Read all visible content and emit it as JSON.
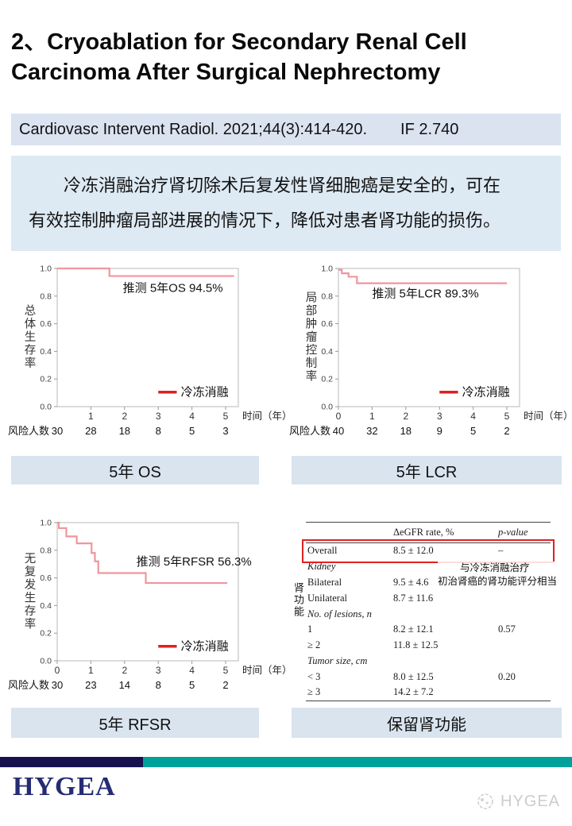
{
  "slide": {
    "title_line1": "2、Cryoablation for Secondary Renal Cell",
    "title_line2": "Carcinoma After Surgical Nephrectomy",
    "citation": "Cardiovasc Intervent Radiol. 2021;44(3):414-420.",
    "impact_factor": "IF 2.740",
    "summary_lines": [
      "冷冻消融治疗肾切除术后复发性肾细胞癌是安全的，可在",
      "有效控制肿瘤局部进展的情况下，降低对患者肾功能的损伤。"
    ]
  },
  "colors": {
    "banner_bg": "#dbe3f1",
    "summary_bg": "#dde9f3",
    "caption_bg": "#d9e4ef",
    "curve_pink": "#ef969e",
    "legend_red": "#e02020",
    "highlight_red": "#e02020",
    "footer_navy": "#171150",
    "footer_teal": "#00a19a",
    "logo_navy": "#252c73"
  },
  "captions": {
    "os": "5年 OS",
    "lcr": "5年 LCR",
    "rfsr": "5年 RFSR",
    "renal": "保留肾功能"
  },
  "chart_data": [
    {
      "id": "os",
      "type": "line",
      "subtype": "kaplan-meier-step",
      "annotation": "推测 5年OS 94.5%",
      "annotation_xy": [
        1.95,
        0.83
      ],
      "ylabel": "总体生存率",
      "xlabel": "时间（年）",
      "legend": "冷冻消融",
      "xticks": [
        1,
        2,
        3,
        4,
        5
      ],
      "yticks": [
        0.0,
        0.2,
        0.4,
        0.6,
        0.8,
        1.0
      ],
      "xlim": [
        0,
        5.3
      ],
      "ylim": [
        0,
        1
      ],
      "risk_label": "风险人数",
      "risk_counts": [
        30,
        28,
        18,
        8,
        5,
        3
      ],
      "steps": [
        [
          0,
          1.0
        ],
        [
          1.55,
          1.0
        ],
        [
          1.55,
          0.945
        ],
        [
          5.25,
          0.945
        ]
      ]
    },
    {
      "id": "lcr",
      "type": "line",
      "subtype": "kaplan-meier-step",
      "annotation": "推测 5年LCR 89.3%",
      "annotation_xy": [
        1.0,
        0.79
      ],
      "ylabel": "局部肿瘤控制率",
      "xlabel": "时间（年）",
      "legend": "冷冻消融",
      "xticks": [
        0,
        1,
        2,
        3,
        4,
        5
      ],
      "yticks": [
        0.0,
        0.2,
        0.4,
        0.6,
        0.8,
        1.0
      ],
      "xlim": [
        0,
        5.3
      ],
      "ylim": [
        0,
        1
      ],
      "risk_label": "风险人数",
      "risk_counts": [
        40,
        32,
        18,
        9,
        5,
        2
      ],
      "steps": [
        [
          0,
          0.99
        ],
        [
          0.1,
          0.99
        ],
        [
          0.1,
          0.965
        ],
        [
          0.3,
          0.965
        ],
        [
          0.3,
          0.94
        ],
        [
          0.55,
          0.94
        ],
        [
          0.55,
          0.893
        ],
        [
          5.0,
          0.893
        ]
      ]
    },
    {
      "id": "rfsr",
      "type": "line",
      "subtype": "kaplan-meier-step",
      "annotation": "推测 5年RFSR 56.3%",
      "annotation_xy": [
        2.35,
        0.69
      ],
      "ylabel": "无复发生存率",
      "xlabel": "时间（年）",
      "legend": "冷冻消融",
      "xticks": [
        0,
        1,
        2,
        3,
        4,
        5
      ],
      "yticks": [
        0.0,
        0.2,
        0.4,
        0.6,
        0.8,
        1.0
      ],
      "xlim": [
        0,
        5.3
      ],
      "ylim": [
        0,
        1
      ],
      "risk_label": "风险人数",
      "risk_counts": [
        30,
        23,
        14,
        8,
        5,
        2
      ],
      "steps": [
        [
          0,
          1.0
        ],
        [
          0.05,
          1.0
        ],
        [
          0.05,
          0.96
        ],
        [
          0.27,
          0.96
        ],
        [
          0.27,
          0.9
        ],
        [
          0.58,
          0.9
        ],
        [
          0.58,
          0.85
        ],
        [
          1.02,
          0.85
        ],
        [
          1.02,
          0.78
        ],
        [
          1.12,
          0.78
        ],
        [
          1.12,
          0.72
        ],
        [
          1.22,
          0.72
        ],
        [
          1.22,
          0.635
        ],
        [
          2.63,
          0.635
        ],
        [
          2.63,
          0.563
        ],
        [
          5.05,
          0.563
        ]
      ]
    },
    {
      "id": "renal-function",
      "type": "table",
      "columns": [
        "",
        "ΔeGFR rate, %",
        "p-value"
      ],
      "rows": [
        {
          "label": "Overall",
          "value": "8.5 ± 12.0",
          "p": "–",
          "highlight": true
        },
        {
          "label": "Kidney",
          "value": "",
          "p": "",
          "group": true
        },
        {
          "label": "Bilateral",
          "value": "9.5 ± 4.6",
          "p": ""
        },
        {
          "label": "Unilateral",
          "value": "8.7 ± 11.6",
          "p": ""
        },
        {
          "label": "No. of lesions, n",
          "value": "",
          "p": "",
          "group": true
        },
        {
          "label": "1",
          "value": "8.2 ± 12.1",
          "p": "0.57"
        },
        {
          "label": "≥ 2",
          "value": "11.8 ± 12.5",
          "p": ""
        },
        {
          "label": "Tumor size, cm",
          "value": "",
          "p": "",
          "group": true
        },
        {
          "label": "< 3",
          "value": "8.0 ± 12.5",
          "p": "0.20"
        },
        {
          "label": "≥ 3",
          "value": "14.2 ± 7.2",
          "p": ""
        }
      ],
      "side_label": "肾功能",
      "annotation_line1": "与冷冻消融治疗",
      "annotation_line2": "初治肾癌的肾功能评分相当"
    }
  ],
  "footer": {
    "logo_text": "HYGEA",
    "watermark_text": "HYGEA"
  }
}
